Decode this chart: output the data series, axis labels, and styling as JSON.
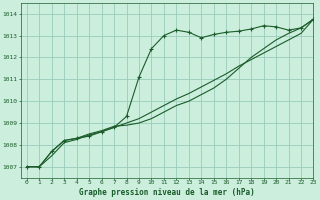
{
  "bg_color": "#cceedd",
  "grid_color": "#99ccbb",
  "line_color": "#1a5c2a",
  "title": "Graphe pression niveau de la mer (hPa)",
  "xlim": [
    -0.5,
    23
  ],
  "ylim": [
    1006.5,
    1014.5
  ],
  "xticks": [
    0,
    1,
    2,
    3,
    4,
    5,
    6,
    7,
    8,
    9,
    10,
    11,
    12,
    13,
    14,
    15,
    16,
    17,
    18,
    19,
    20,
    21,
    22,
    23
  ],
  "yticks": [
    1007,
    1008,
    1009,
    1010,
    1011,
    1012,
    1013,
    1014
  ],
  "series0_marked": [
    1007.0,
    1007.0,
    1007.7,
    1008.2,
    1008.3,
    1008.4,
    1008.6,
    1008.8,
    1009.3,
    1011.1,
    1012.4,
    1013.0,
    1013.25,
    1013.15,
    1012.9,
    1013.05,
    1013.15,
    1013.2,
    1013.3,
    1013.45,
    1013.4,
    1013.25,
    1013.35,
    1013.75
  ],
  "series1_steep": [
    1007.0,
    1007.0,
    1007.7,
    1008.2,
    1008.3,
    1008.5,
    1008.65,
    1008.85,
    1008.9,
    1009.0,
    1009.2,
    1009.5,
    1009.8,
    1010.0,
    1010.3,
    1010.6,
    1011.0,
    1011.5,
    1012.0,
    1012.4,
    1012.8,
    1013.1,
    1013.35,
    1013.75
  ],
  "series2_linear": [
    1007.0,
    1007.0,
    1007.5,
    1008.1,
    1008.25,
    1008.45,
    1008.6,
    1008.8,
    1009.0,
    1009.2,
    1009.5,
    1009.8,
    1010.1,
    1010.35,
    1010.65,
    1010.95,
    1011.25,
    1011.6,
    1011.9,
    1012.2,
    1012.5,
    1012.8,
    1013.1,
    1013.75
  ]
}
